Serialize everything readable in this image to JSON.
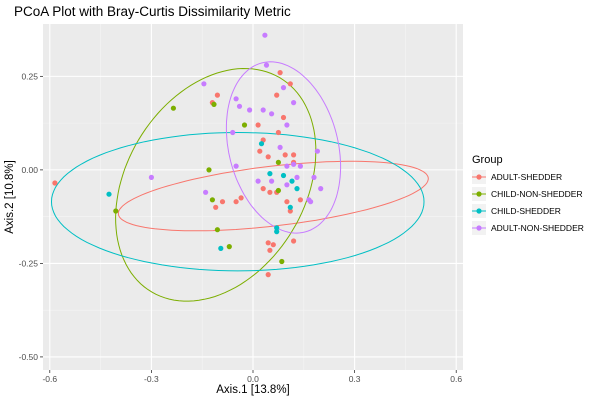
{
  "chart_data": {
    "type": "scatter",
    "title": "PCoA Plot with Bray-Curtis Dissimilarity Metric",
    "xlabel": "Axis.1   [13.8%]",
    "ylabel": "Axis.2   [10.8%]",
    "xlim": [
      -0.62,
      0.62
    ],
    "ylim": [
      -0.535,
      0.39
    ],
    "x_ticks": [
      -0.6,
      -0.3,
      0.0,
      0.3,
      0.6
    ],
    "x_tick_labels": [
      "-0.6",
      "-0.3",
      "0.0",
      "0.3",
      "0.6"
    ],
    "y_ticks": [
      -0.5,
      -0.25,
      0.0,
      0.25
    ],
    "y_tick_labels": [
      "-0.50",
      "-0.25",
      "0.00",
      "0.25"
    ],
    "grid": true,
    "legend_title": "Group",
    "legend_position": "right",
    "series": [
      {
        "name": "ADULT-SHEDDER",
        "color": "#F8766D",
        "points": [
          [
            -0.585,
            -0.035
          ],
          [
            -0.12,
            0.18
          ],
          [
            -0.105,
            0.2
          ],
          [
            -0.11,
            -0.1
          ],
          [
            -0.09,
            -0.085
          ],
          [
            0.015,
            0.12
          ],
          [
            0.03,
            0.08
          ],
          [
            0.02,
            0.05
          ],
          [
            0.045,
            0.035
          ],
          [
            0.07,
            0.2
          ],
          [
            0.08,
            0.26
          ],
          [
            0.09,
            0.14
          ],
          [
            0.11,
            0.23
          ],
          [
            0.095,
            0.04
          ],
          [
            0.12,
            0.02
          ],
          [
            0.03,
            -0.05
          ],
          [
            0.05,
            -0.06
          ],
          [
            0.07,
            -0.06
          ],
          [
            0.1,
            -0.085
          ],
          [
            0.11,
            -0.11
          ],
          [
            0.14,
            -0.08
          ],
          [
            0.045,
            -0.195
          ],
          [
            0.06,
            -0.2
          ],
          [
            0.05,
            -0.215
          ],
          [
            0.12,
            -0.19
          ],
          [
            0.045,
            -0.28
          ],
          [
            -0.035,
            -0.075
          ],
          [
            -0.05,
            -0.085
          ],
          [
            0.075,
            0.1
          ],
          [
            0.12,
            0.04
          ]
        ]
      },
      {
        "name": "CHILD-NON-SHEDDER",
        "color": "#7CAE00",
        "points": [
          [
            -0.235,
            0.165
          ],
          [
            -0.13,
            0.0
          ],
          [
            -0.12,
            -0.08
          ],
          [
            -0.105,
            -0.16
          ],
          [
            -0.115,
            0.175
          ],
          [
            -0.405,
            -0.11
          ],
          [
            -0.025,
            0.12
          ],
          [
            0.075,
            -0.055
          ],
          [
            0.085,
            -0.245
          ],
          [
            -0.07,
            -0.205
          ],
          [
            0.075,
            0.02
          ]
        ]
      },
      {
        "name": "CHILD-SHEDDER",
        "color": "#00BFC4",
        "points": [
          [
            -0.425,
            -0.065
          ],
          [
            -0.095,
            -0.21
          ],
          [
            0.025,
            0.07
          ],
          [
            0.05,
            -0.01
          ],
          [
            0.09,
            -0.015
          ],
          [
            0.13,
            -0.05
          ],
          [
            0.07,
            -0.155
          ],
          [
            0.07,
            -0.165
          ],
          [
            0.11,
            -0.1
          ],
          [
            0.115,
            -0.03
          ]
        ]
      },
      {
        "name": "ADULT-NON-SHEDDER",
        "color": "#C77CFF",
        "points": [
          [
            -0.3,
            -0.02
          ],
          [
            -0.145,
            0.23
          ],
          [
            -0.14,
            -0.06
          ],
          [
            -0.05,
            0.19
          ],
          [
            -0.04,
            0.17
          ],
          [
            -0.01,
            0.16
          ],
          [
            0.03,
            0.16
          ],
          [
            0.055,
            0.15
          ],
          [
            0.035,
            0.36
          ],
          [
            0.04,
            0.28
          ],
          [
            0.09,
            0.22
          ],
          [
            0.12,
            0.18
          ],
          [
            0.19,
            0.05
          ],
          [
            0.18,
            -0.02
          ],
          [
            0.2,
            -0.05
          ],
          [
            0.165,
            -0.08
          ],
          [
            0.17,
            -0.085
          ],
          [
            0.1,
            0.12
          ],
          [
            0.08,
            0.06
          ],
          [
            0.1,
            -0.04
          ],
          [
            0.1,
            0.01
          ],
          [
            0.015,
            -0.03
          ],
          [
            -0.05,
            0.01
          ],
          [
            0.12,
            0.015
          ],
          [
            0.13,
            -0.02
          ],
          [
            -0.06,
            0.1
          ],
          [
            0.055,
            -0.03
          ],
          [
            0.14,
            0.01
          ]
        ]
      }
    ],
    "ellipses": [
      {
        "series": "ADULT-SHEDDER",
        "cx": 0.06,
        "cy": -0.07,
        "rx": 0.08,
        "ry": 0.46,
        "angle_deg": 96
      },
      {
        "series": "CHILD-NON-SHEDDER",
        "cx": -0.11,
        "cy": -0.04,
        "rx": 0.345,
        "ry": 0.255,
        "angle_deg": -130
      },
      {
        "series": "CHILD-SHEDDER",
        "cx": -0.045,
        "cy": -0.085,
        "rx": 0.55,
        "ry": 0.185,
        "angle_deg": 0
      },
      {
        "series": "ADULT-NON-SHEDDER",
        "cx": 0.09,
        "cy": 0.06,
        "rx": 0.235,
        "ry": 0.16,
        "angle_deg": -72
      }
    ]
  }
}
